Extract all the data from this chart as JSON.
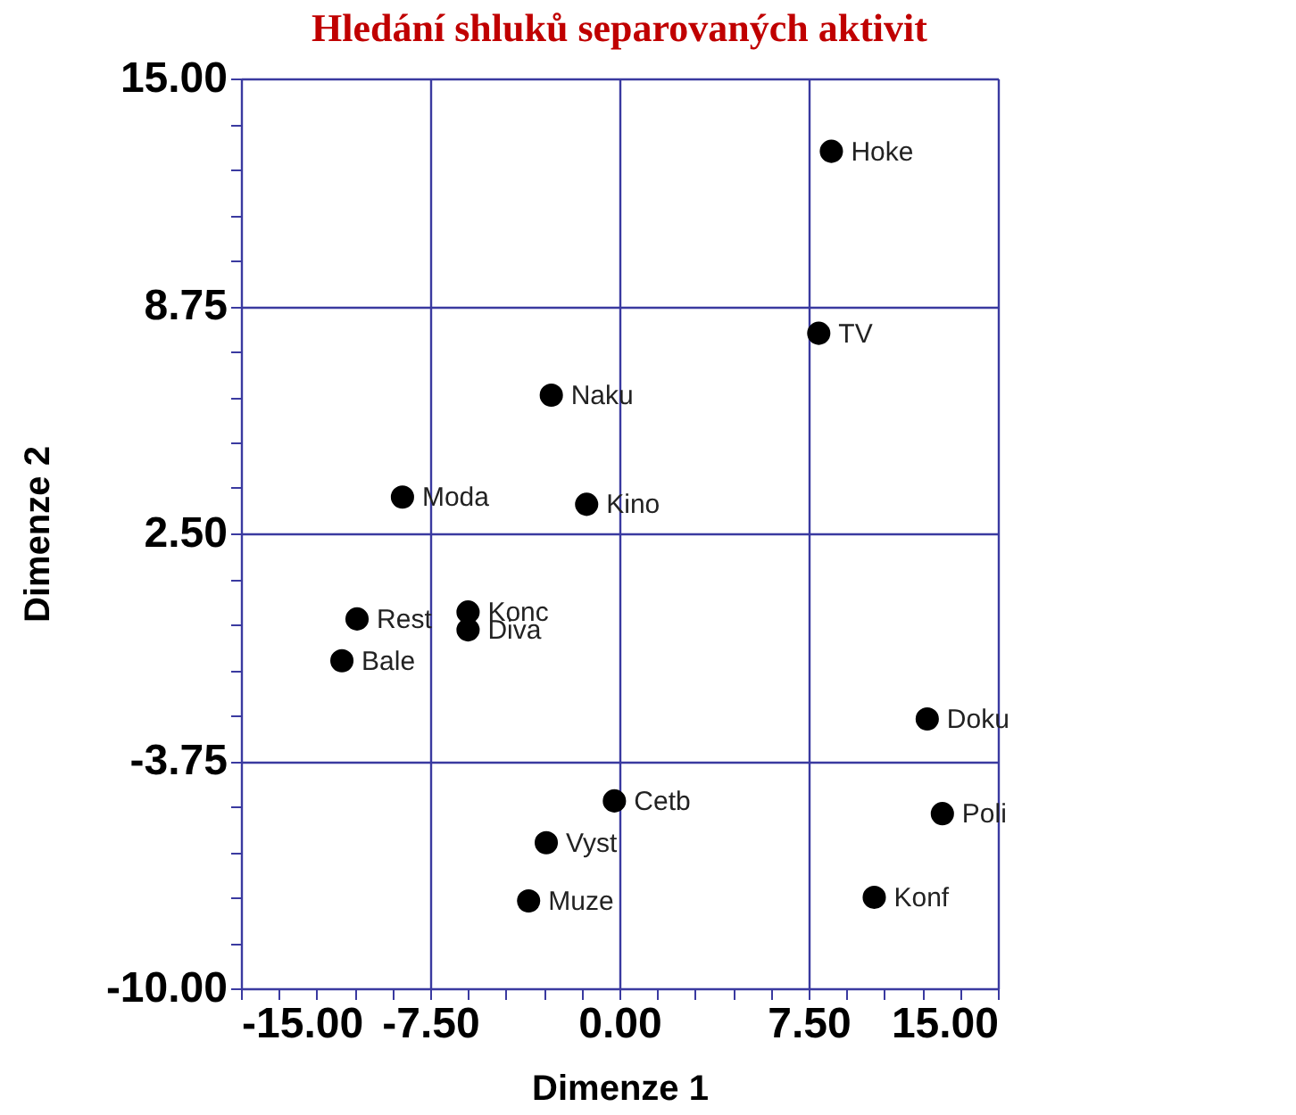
{
  "chart_data": {
    "type": "scatter",
    "title": "Hledání shluků separovaných aktivit",
    "xlabel": "Dimenze 1",
    "ylabel": "Dimenze 2",
    "x": [
      8.4,
      7.9,
      -2.7,
      -8.6,
      -1.3,
      -10.4,
      -6.0,
      -6.0,
      -11.0,
      12.2,
      -0.2,
      12.8,
      -2.9,
      -3.6,
      10.1
    ],
    "series": [
      {
        "color": "#000000",
        "values": [
          13.0,
          8.0,
          6.3,
          3.5,
          3.3,
          0.15,
          0.34,
          -0.15,
          -1.0,
          -2.6,
          -4.85,
          -5.2,
          -6.0,
          -7.6,
          -7.5
        ]
      }
    ],
    "annotations": [
      {
        "text": "Hoke",
        "x": 8.4,
        "y": 13.0
      },
      {
        "text": "TV",
        "x": 7.9,
        "y": 8.0
      },
      {
        "text": "Naku",
        "x": -2.7,
        "y": 6.3
      },
      {
        "text": "Moda",
        "x": -8.6,
        "y": 3.5
      },
      {
        "text": "Kino",
        "x": -1.3,
        "y": 3.3
      },
      {
        "text": "Rest",
        "x": -10.4,
        "y": 0.15
      },
      {
        "text": "Konc",
        "x": -6.0,
        "y": 0.34
      },
      {
        "text": "Diva",
        "x": -6.0,
        "y": -0.15
      },
      {
        "text": "Bale",
        "x": -11.0,
        "y": -1.0
      },
      {
        "text": "Doku",
        "x": 12.2,
        "y": -2.6
      },
      {
        "text": "Cetb",
        "x": -0.2,
        "y": -4.85
      },
      {
        "text": "Poli",
        "x": 12.8,
        "y": -5.2
      },
      {
        "text": "Vyst",
        "x": -2.9,
        "y": -6.0
      },
      {
        "text": "Muze",
        "x": -3.6,
        "y": -7.6
      },
      {
        "text": "Konf",
        "x": 10.1,
        "y": -7.5
      }
    ],
    "xlim": [
      -15,
      15
    ],
    "ylim": [
      -10,
      15
    ],
    "xticks": [
      {
        "value": -15,
        "label": "-15.00"
      },
      {
        "value": -13.5,
        "label": null
      },
      {
        "value": -12,
        "label": null
      },
      {
        "value": -10.5,
        "label": null
      },
      {
        "value": -9,
        "label": null
      },
      {
        "value": -7.5,
        "label": "-7.50"
      },
      {
        "value": -6,
        "label": null
      },
      {
        "value": -4.5,
        "label": null
      },
      {
        "value": -3,
        "label": null
      },
      {
        "value": -1.5,
        "label": null
      },
      {
        "value": 0,
        "label": "0.00"
      },
      {
        "value": 1.5,
        "label": null
      },
      {
        "value": 3,
        "label": null
      },
      {
        "value": 4.5,
        "label": null
      },
      {
        "value": 6,
        "label": null
      },
      {
        "value": 7.5,
        "label": "7.50"
      },
      {
        "value": 9,
        "label": null
      },
      {
        "value": 10.5,
        "label": null
      },
      {
        "value": 12,
        "label": null
      },
      {
        "value": 13.5,
        "label": null
      },
      {
        "value": 15,
        "label": "15.00"
      }
    ],
    "yticks": [
      {
        "value": -10,
        "label": "-10.00"
      },
      {
        "value": -8.75,
        "label": null
      },
      {
        "value": -7.5,
        "label": null
      },
      {
        "value": -6.25,
        "label": null
      },
      {
        "value": -5,
        "label": null
      },
      {
        "value": -3.75,
        "label": "-3.75"
      },
      {
        "value": -2.5,
        "label": null
      },
      {
        "value": -1.25,
        "label": null
      },
      {
        "value": 0,
        "label": null
      },
      {
        "value": 1.25,
        "label": null
      },
      {
        "value": 2.5,
        "label": "2.50"
      },
      {
        "value": 3.75,
        "label": null
      },
      {
        "value": 5,
        "label": null
      },
      {
        "value": 6.25,
        "label": null
      },
      {
        "value": 7.5,
        "label": null
      },
      {
        "value": 8.75,
        "label": "8.75"
      },
      {
        "value": 10,
        "label": null
      },
      {
        "value": 11.25,
        "label": null
      },
      {
        "value": 12.5,
        "label": null
      },
      {
        "value": 13.75,
        "label": null
      },
      {
        "value": 15,
        "label": "15.00"
      }
    ],
    "grid": true,
    "marker": "circle"
  }
}
